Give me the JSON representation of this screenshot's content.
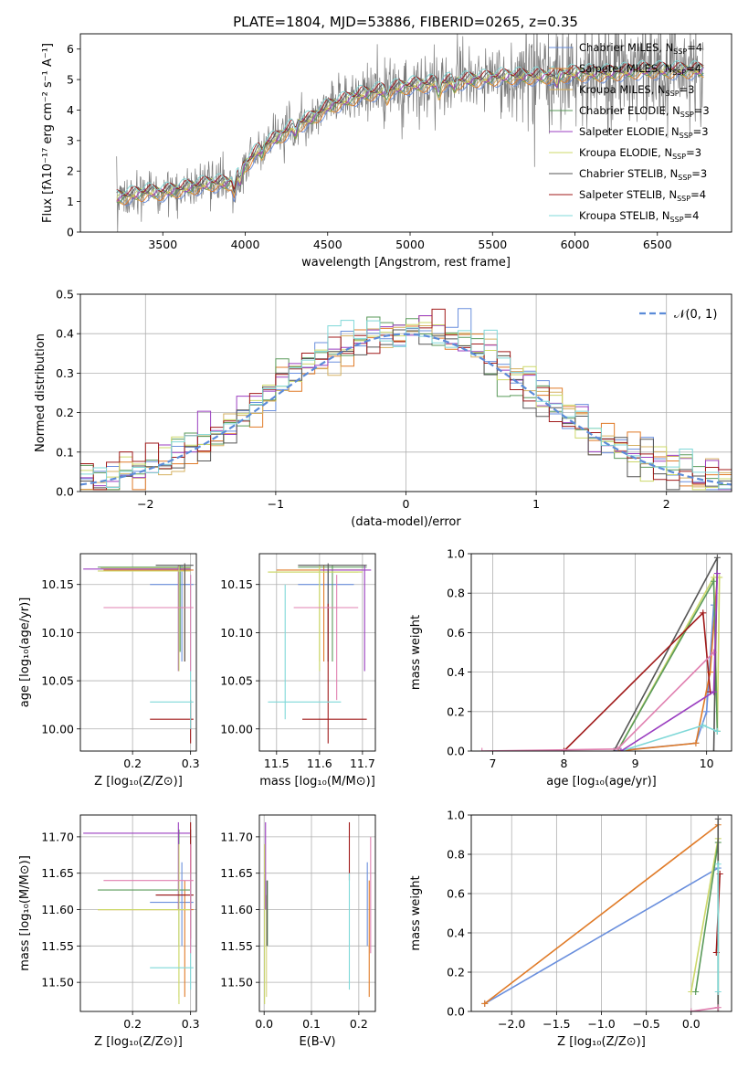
{
  "figure": {
    "title": "PLATE=1804, MJD=53886, FIBERID=0265, z=0.35",
    "colors": [
      "#6a8fdd",
      "#e07b28",
      "#d5d37a",
      "#5a9a5a",
      "#9b3fc0",
      "#ccd86a",
      "#555555",
      "#a01a1a",
      "#7fd8d8",
      "#e080b0"
    ]
  },
  "models": [
    {
      "name": "Chabrier MILES, N",
      "sub": "SSP",
      "n": "=4",
      "color": "#6a8fdd"
    },
    {
      "name": "Salpeter MILES, N",
      "sub": "SSP",
      "n": "=4",
      "color": "#e07b28"
    },
    {
      "name": "Kroupa MILES, N",
      "sub": "SSP",
      "n": "=3",
      "color": "#d5b060"
    },
    {
      "name": "Chabrier ELODIE, N",
      "sub": "SSP",
      "n": "=3",
      "color": "#5a9a5a"
    },
    {
      "name": "Salpeter ELODIE, N",
      "sub": "SSP",
      "n": "=3",
      "color": "#9b3fc0"
    },
    {
      "name": "Kroupa ELODIE, N",
      "sub": "SSP",
      "n": "=3",
      "color": "#ccd86a"
    },
    {
      "name": "Chabrier STELIB, N",
      "sub": "SSP",
      "n": "=3",
      "color": "#555555"
    },
    {
      "name": "Salpeter STELIB, N",
      "sub": "SSP",
      "n": "=4",
      "color": "#a01a1a"
    },
    {
      "name": "Kroupa STELIB, N",
      "sub": "SSP",
      "n": "=4",
      "color": "#7fd8d8"
    }
  ],
  "chart_data": [
    {
      "id": "spectrum",
      "type": "line",
      "xlabel": "wavelength [Angstrom, rest frame]",
      "ylabel": "Flux [fλ10⁻¹⁷ erg cm⁻² s⁻¹ A⁻¹]",
      "xlim": [
        3000,
        6950
      ],
      "ylim": [
        0,
        6.5
      ],
      "xticks": [
        "3500",
        "4000",
        "4500",
        "5000",
        "5500",
        "6000",
        "6500"
      ],
      "yticks": [
        "0",
        "1",
        "2",
        "3",
        "4",
        "5",
        "6"
      ],
      "continuum": {
        "x": [
          3200,
          3300,
          3400,
          3500,
          3600,
          3700,
          3800,
          3900,
          4000,
          4100,
          4200,
          4300,
          4400,
          4500,
          4600,
          4700,
          4800,
          4900,
          5000,
          5200,
          5400,
          5600,
          5800,
          6000,
          6200,
          6400,
          6600,
          6800
        ],
        "y": [
          1.1,
          1.2,
          1.3,
          1.3,
          1.4,
          1.5,
          1.6,
          1.6,
          2.2,
          2.8,
          3.1,
          3.5,
          3.7,
          4.1,
          4.3,
          4.5,
          4.6,
          4.7,
          4.8,
          4.9,
          5.0,
          5.1,
          5.1,
          5.2,
          5.2,
          5.3,
          5.3,
          5.3
        ]
      },
      "legend": "top-right"
    },
    {
      "id": "residuals",
      "type": "line",
      "xlabel": "(data-model)/error",
      "ylabel": "Normed distribution",
      "xlim": [
        -2.5,
        2.5
      ],
      "ylim": [
        0,
        0.5
      ],
      "xticks": [
        "−2",
        "−1",
        "0",
        "1",
        "2"
      ],
      "yticks": [
        "0.0",
        "0.1",
        "0.2",
        "0.3",
        "0.4",
        "0.5"
      ],
      "legend_label": "𝒩(0, 1)",
      "grid": true
    },
    {
      "id": "age-vs-Z",
      "type": "scatter",
      "xlabel": "Z [log₁₀(Z/Z⊙)]",
      "ylabel": "age  [log₁₀(age/yr)]",
      "xlim": [
        0.11,
        0.31
      ],
      "ylim": [
        9.977,
        10.182
      ],
      "xticks": [
        "0.2",
        "0.3"
      ],
      "yticks": [
        "10.00",
        "10.05",
        "10.10",
        "10.15"
      ],
      "grid": true,
      "points": [
        {
          "x": 0.285,
          "y": 10.15,
          "xerr": [
            0.23,
            0.305
          ],
          "yerr": [
            10.07,
            10.17
          ],
          "c": 0
        },
        {
          "x": 0.29,
          "y": 10.165,
          "xerr": [
            0.15,
            0.305
          ],
          "yerr": [
            10.07,
            10.17
          ],
          "c": 1
        },
        {
          "x": 0.28,
          "y": 10.167,
          "xerr": [
            0.145,
            0.3
          ],
          "yerr": [
            10.07,
            10.17
          ],
          "c": 2
        },
        {
          "x": 0.282,
          "y": 10.168,
          "xerr": [
            0.14,
            0.3
          ],
          "yerr": [
            10.08,
            10.17
          ],
          "c": 3
        },
        {
          "x": 0.279,
          "y": 10.166,
          "xerr": [
            0.115,
            0.3
          ],
          "yerr": [
            10.06,
            10.17
          ],
          "c": 4
        },
        {
          "x": 0.28,
          "y": 10.164,
          "xerr": [
            0.14,
            0.3
          ],
          "yerr": [
            10.06,
            10.17
          ],
          "c": 5
        },
        {
          "x": 0.29,
          "y": 10.17,
          "xerr": [
            0.24,
            0.305
          ],
          "yerr": [
            10.07,
            10.172
          ],
          "c": 6
        },
        {
          "x": 0.3,
          "y": 10.01,
          "xerr": [
            0.23,
            0.305
          ],
          "yerr": [
            9.985,
            10.03
          ],
          "c": 7
        },
        {
          "x": 0.3,
          "y": 10.028,
          "xerr": [
            0.23,
            0.305
          ],
          "yerr": [
            10.0,
            10.16
          ],
          "c": 8
        },
        {
          "x": 0.3,
          "y": 10.126,
          "xerr": [
            0.15,
            0.305
          ],
          "yerr": [
            10.06,
            10.16
          ],
          "c": 9
        }
      ]
    },
    {
      "id": "age-vs-mass",
      "type": "scatter",
      "xlabel": "mass [log₁₀(M/M⊙)]",
      "xlim": [
        11.46,
        11.73
      ],
      "ylim": [
        9.977,
        10.182
      ],
      "xticks": [
        "11.5",
        "11.6",
        "11.7"
      ],
      "yticks": [
        "10.00",
        "10.05",
        "10.10",
        "10.15"
      ],
      "grid": true,
      "points": [
        {
          "x": 11.62,
          "y": 10.15,
          "xerr": [
            11.55,
            11.68
          ],
          "yerr": [
            10.07,
            10.165
          ],
          "c": 0
        },
        {
          "x": 11.61,
          "y": 10.165,
          "xerr": [
            11.5,
            11.7
          ],
          "yerr": [
            10.07,
            10.17
          ],
          "c": 1
        },
        {
          "x": 11.6,
          "y": 10.163,
          "xerr": [
            11.48,
            11.69
          ],
          "yerr": [
            10.07,
            10.17
          ],
          "c": 2
        },
        {
          "x": 11.63,
          "y": 10.168,
          "xerr": [
            11.55,
            11.71
          ],
          "yerr": [
            10.07,
            10.17
          ],
          "c": 3
        },
        {
          "x": 11.705,
          "y": 10.165,
          "xerr": [
            11.6,
            11.72
          ],
          "yerr": [
            10.06,
            10.17
          ],
          "c": 4
        },
        {
          "x": 11.6,
          "y": 10.163,
          "xerr": [
            11.48,
            11.7
          ],
          "yerr": [
            10.06,
            10.17
          ],
          "c": 5
        },
        {
          "x": 11.62,
          "y": 10.17,
          "xerr": [
            11.55,
            11.71
          ],
          "yerr": [
            10.07,
            10.172
          ],
          "c": 6
        },
        {
          "x": 11.62,
          "y": 10.01,
          "xerr": [
            11.56,
            11.71
          ],
          "yerr": [
            9.985,
            10.13
          ],
          "c": 7
        },
        {
          "x": 11.52,
          "y": 10.028,
          "xerr": [
            11.48,
            11.65
          ],
          "yerr": [
            10.01,
            10.15
          ],
          "c": 8
        },
        {
          "x": 11.64,
          "y": 10.126,
          "xerr": [
            11.54,
            11.69
          ],
          "yerr": [
            10.03,
            10.16
          ],
          "c": 9
        }
      ]
    },
    {
      "id": "weight-vs-age",
      "type": "line",
      "xlabel": "age  [log₁₀(age/yr)]",
      "ylabel": "mass weight",
      "xlim": [
        6.7,
        10.35
      ],
      "ylim": [
        0,
        1.0
      ],
      "xticks": [
        "7",
        "8",
        "9",
        "10"
      ],
      "yticks": [
        "0.0",
        "0.2",
        "0.4",
        "0.6",
        "0.8",
        "1.0"
      ],
      "grid": true,
      "series": [
        {
          "c": 0,
          "x": [
            8.7,
            9.85,
            10.0,
            10.1
          ],
          "y": [
            0.0,
            0.04,
            0.2,
            0.74
          ]
        },
        {
          "c": 1,
          "x": [
            8.75,
            9.85,
            10.05,
            10.15
          ],
          "y": [
            0.0,
            0.04,
            0.4,
            0.88
          ]
        },
        {
          "c": 5,
          "x": [
            8.75,
            10.1,
            10.15,
            10.18
          ],
          "y": [
            0.0,
            0.88,
            0.1,
            0.88
          ]
        },
        {
          "c": 3,
          "x": [
            8.75,
            10.1,
            10.15
          ],
          "y": [
            0.0,
            0.86,
            0.1
          ]
        },
        {
          "c": 6,
          "x": [
            8.7,
            10.15,
            10.1
          ],
          "y": [
            0.0,
            0.98,
            0.0
          ]
        },
        {
          "c": 7,
          "x": [
            8.0,
            9.95,
            10.05
          ],
          "y": [
            0.0,
            0.7,
            0.3
          ]
        },
        {
          "c": 8,
          "x": [
            8.8,
            9.95,
            10.15
          ],
          "y": [
            0.0,
            0.13,
            0.1
          ]
        },
        {
          "c": 9,
          "x": [
            6.85,
            8.75,
            10.1
          ],
          "y": [
            0.0,
            0.01,
            0.5
          ]
        },
        {
          "c": 4,
          "x": [
            8.8,
            10.1,
            10.15
          ],
          "y": [
            0.0,
            0.3,
            0.9
          ]
        }
      ]
    },
    {
      "id": "mass-vs-Z",
      "type": "scatter",
      "xlabel": "Z [log₁₀(Z/Z⊙)]",
      "ylabel": "mass [log₁₀(M/M⊙)]",
      "xlim": [
        0.11,
        0.31
      ],
      "ylim": [
        11.46,
        11.73
      ],
      "xticks": [
        "0.2",
        "0.3"
      ],
      "yticks": [
        "11.50",
        "11.55",
        "11.60",
        "11.65",
        "11.70"
      ],
      "grid": true,
      "points": [
        {
          "x": 0.285,
          "y": 11.61,
          "xerr": [
            0.23,
            0.305
          ],
          "yerr": [
            11.55,
            11.665
          ],
          "c": 0
        },
        {
          "x": 0.29,
          "y": 11.6,
          "xerr": [
            0.14,
            0.305
          ],
          "yerr": [
            11.48,
            11.64
          ],
          "c": 1
        },
        {
          "x": 0.28,
          "y": 11.6,
          "xerr": [
            0.14,
            0.3
          ],
          "yerr": [
            11.48,
            11.62
          ],
          "c": 2
        },
        {
          "x": 0.28,
          "y": 11.627,
          "xerr": [
            0.14,
            0.3
          ],
          "yerr": [
            11.55,
            11.71
          ],
          "c": 3
        },
        {
          "x": 0.279,
          "y": 11.705,
          "xerr": [
            0.115,
            0.3
          ],
          "yerr": [
            11.6,
            11.72
          ],
          "c": 4
        },
        {
          "x": 0.28,
          "y": 11.6,
          "xerr": [
            0.14,
            0.3
          ],
          "yerr": [
            11.47,
            11.69
          ],
          "c": 5
        },
        {
          "x": 0.3,
          "y": 11.62,
          "xerr": [
            0.24,
            0.305
          ],
          "yerr": [
            11.55,
            11.71
          ],
          "c": 6
        },
        {
          "x": 0.3,
          "y": 11.62,
          "xerr": [
            0.24,
            0.305
          ],
          "yerr": [
            11.56,
            11.72
          ],
          "c": 7
        },
        {
          "x": 0.3,
          "y": 11.52,
          "xerr": [
            0.23,
            0.305
          ],
          "yerr": [
            11.49,
            11.65
          ],
          "c": 8
        },
        {
          "x": 0.3,
          "y": 11.64,
          "xerr": [
            0.15,
            0.305
          ],
          "yerr": [
            11.54,
            11.69
          ],
          "c": 9
        }
      ]
    },
    {
      "id": "mass-vs-ebv",
      "type": "scatter",
      "xlabel": "E(B-V)",
      "xlim": [
        -0.01,
        0.235
      ],
      "ylim": [
        11.46,
        11.73
      ],
      "xticks": [
        "0.0",
        "0.1",
        "0.2"
      ],
      "yticks": [
        "11.50",
        "11.55",
        "11.60",
        "11.65",
        "11.70"
      ],
      "grid": true,
      "points": [
        {
          "x": 0.218,
          "yerr": [
            11.55,
            11.665
          ],
          "c": 0
        },
        {
          "x": 0.222,
          "yerr": [
            11.48,
            11.64
          ],
          "c": 1
        },
        {
          "x": 0.005,
          "yerr": [
            11.48,
            11.62
          ],
          "c": 2
        },
        {
          "x": 0.007,
          "yerr": [
            11.55,
            11.64
          ],
          "c": 3
        },
        {
          "x": 0.003,
          "yerr": [
            11.6,
            11.72
          ],
          "c": 4
        },
        {
          "x": 0.001,
          "yerr": [
            11.47,
            11.69
          ],
          "c": 5
        },
        {
          "x": 0.006,
          "yerr": [
            11.55,
            11.64
          ],
          "c": 6
        },
        {
          "x": 0.18,
          "yerr": [
            11.64,
            11.72
          ],
          "c": 7
        },
        {
          "x": 0.18,
          "yerr": [
            11.49,
            11.65
          ],
          "c": 8
        },
        {
          "x": 0.225,
          "yerr": [
            11.54,
            11.7
          ],
          "c": 9
        }
      ]
    },
    {
      "id": "weight-vs-Z",
      "type": "line",
      "xlabel": "Z [log₁₀(Z/Z⊙)]",
      "ylabel": "mass weight",
      "xlim": [
        -2.45,
        0.45
      ],
      "ylim": [
        0,
        1.0
      ],
      "xticks": [
        "−2.0",
        "−1.5",
        "−1.0",
        "−0.5",
        "0.0"
      ],
      "yticks": [
        "0.0",
        "0.2",
        "0.4",
        "0.6",
        "0.8",
        "1.0"
      ],
      "grid": true,
      "series": [
        {
          "c": 0,
          "x": [
            -2.3,
            0.3
          ],
          "y": [
            0.04,
            0.73
          ]
        },
        {
          "c": 1,
          "x": [
            -2.3,
            0.3
          ],
          "y": [
            0.04,
            0.95
          ]
        },
        {
          "c": 5,
          "x": [
            0.0,
            0.3,
            0.3
          ],
          "y": [
            0.1,
            0.88,
            0.0
          ]
        },
        {
          "c": 3,
          "x": [
            0.05,
            0.3,
            0.3
          ],
          "y": [
            0.1,
            0.86,
            0.0
          ]
        },
        {
          "c": 6,
          "x": [
            0.3,
            0.3
          ],
          "y": [
            0.0,
            0.98
          ]
        },
        {
          "c": 7,
          "x": [
            0.28,
            0.32
          ],
          "y": [
            0.3,
            0.7
          ]
        },
        {
          "c": 8,
          "x": [
            0.3,
            0.3
          ],
          "y": [
            0.1,
            0.75
          ]
        },
        {
          "c": 9,
          "x": [
            0.0,
            0.3
          ],
          "y": [
            0.0,
            0.02
          ]
        }
      ]
    }
  ]
}
